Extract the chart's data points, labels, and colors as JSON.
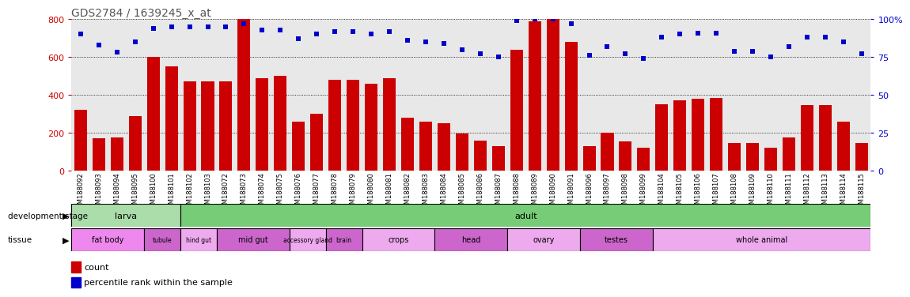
{
  "title": "GDS2784 / 1639245_x_at",
  "samples": [
    "GSM188092",
    "GSM188093",
    "GSM188094",
    "GSM188095",
    "GSM188100",
    "GSM188101",
    "GSM188102",
    "GSM188103",
    "GSM188072",
    "GSM188073",
    "GSM188074",
    "GSM188075",
    "GSM188076",
    "GSM188077",
    "GSM188078",
    "GSM188079",
    "GSM188080",
    "GSM188081",
    "GSM188082",
    "GSM188083",
    "GSM188084",
    "GSM188085",
    "GSM188086",
    "GSM188087",
    "GSM188088",
    "GSM188089",
    "GSM188090",
    "GSM188091",
    "GSM188096",
    "GSM188097",
    "GSM188098",
    "GSM188099",
    "GSM188104",
    "GSM188105",
    "GSM188106",
    "GSM188107",
    "GSM188108",
    "GSM188109",
    "GSM188110",
    "GSM188111",
    "GSM188112",
    "GSM188113",
    "GSM188114",
    "GSM188115"
  ],
  "counts": [
    320,
    170,
    175,
    290,
    600,
    550,
    470,
    470,
    470,
    800,
    490,
    500,
    260,
    300,
    480,
    480,
    460,
    490,
    280,
    260,
    250,
    195,
    160,
    130,
    640,
    790,
    800,
    680,
    130,
    200,
    155,
    120,
    350,
    370,
    380,
    385,
    145,
    145,
    120,
    175,
    345,
    345,
    260,
    145
  ],
  "percentiles": [
    90,
    83,
    78,
    85,
    94,
    95,
    95,
    95,
    95,
    97,
    93,
    93,
    87,
    90,
    92,
    92,
    90,
    92,
    86,
    85,
    84,
    80,
    77,
    75,
    99,
    100,
    100,
    97,
    76,
    82,
    77,
    74,
    88,
    90,
    91,
    91,
    79,
    79,
    75,
    82,
    88,
    88,
    85,
    77
  ],
  "ylim_left": [
    0,
    800
  ],
  "ylim_right": [
    0,
    100
  ],
  "yticks_left": [
    0,
    200,
    400,
    600,
    800
  ],
  "yticks_right": [
    0,
    25,
    50,
    75,
    100
  ],
  "bar_color": "#cc0000",
  "dot_color": "#0000cc",
  "plot_bg_color": "#e8e8e8",
  "title_color": "#555555",
  "development_stages": [
    {
      "label": "larva",
      "start": 0,
      "end": 6,
      "color": "#aaddaa"
    },
    {
      "label": "adult",
      "start": 6,
      "end": 44,
      "color": "#77cc77"
    }
  ],
  "tissues": [
    {
      "label": "fat body",
      "start": 0,
      "end": 4,
      "color": "#ee88ee"
    },
    {
      "label": "tubule",
      "start": 4,
      "end": 6,
      "color": "#cc66cc"
    },
    {
      "label": "hind gut",
      "start": 6,
      "end": 8,
      "color": "#eeaaee"
    },
    {
      "label": "mid gut",
      "start": 8,
      "end": 12,
      "color": "#cc66cc"
    },
    {
      "label": "accessory gland",
      "start": 12,
      "end": 14,
      "color": "#eeaaee"
    },
    {
      "label": "brain",
      "start": 14,
      "end": 16,
      "color": "#cc66cc"
    },
    {
      "label": "crops",
      "start": 16,
      "end": 20,
      "color": "#eeaaee"
    },
    {
      "label": "head",
      "start": 20,
      "end": 24,
      "color": "#cc66cc"
    },
    {
      "label": "ovary",
      "start": 24,
      "end": 28,
      "color": "#eeaaee"
    },
    {
      "label": "testes",
      "start": 28,
      "end": 32,
      "color": "#cc66cc"
    },
    {
      "label": "whole animal",
      "start": 32,
      "end": 44,
      "color": "#eeaaee"
    }
  ]
}
